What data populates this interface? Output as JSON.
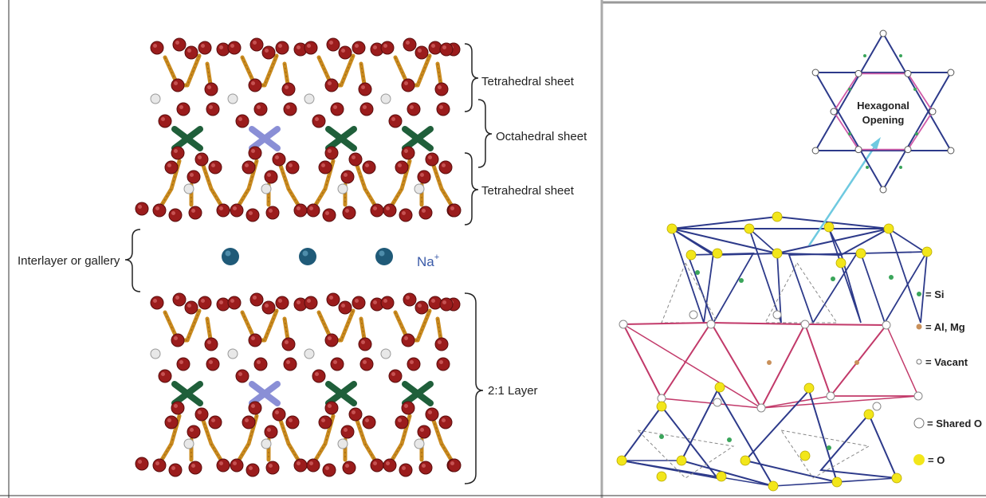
{
  "left_panel": {
    "labels": {
      "tetrahedral_top": "Tetrahedral sheet",
      "octahedral": "Octahedral sheet",
      "tetrahedral_bottom": "Tetrahedral sheet",
      "interlayer": "Interlayer or gallery",
      "layer": "2:1 Layer",
      "cation_base": "Na",
      "cation_charge": "+"
    },
    "colors": {
      "oxygen": "#9b1c1c",
      "bond": "#c98a1e",
      "hydrogen": "#e8e8e8",
      "octahedral_cation": "#1f5f3a",
      "octahedral_substituted": "#8a8fd6",
      "sodium": "#1f5a78",
      "cation_label": "#3a5aa8"
    }
  },
  "right_panel": {
    "hex_label_line1": "Hexagonal",
    "hex_label_line2": "Opening",
    "legend": [
      {
        "key": "si",
        "label": "= Si",
        "color": "#3aa55a"
      },
      {
        "key": "al",
        "label": "= Al, Mg",
        "color": "#c9905a"
      },
      {
        "key": "vacant",
        "label": "= Vacant",
        "color": "#ffffff"
      },
      {
        "key": "shared_o",
        "label": "= Shared O",
        "color": "#ffffff"
      },
      {
        "key": "o",
        "label": "= O",
        "color": "#f2e61a"
      }
    ],
    "colors": {
      "tetra_edge": "#2d3a8a",
      "octa_edge": "#c23a6a",
      "hex_arrow": "#6ec9e0",
      "oxygen": "#f2e61a"
    }
  }
}
